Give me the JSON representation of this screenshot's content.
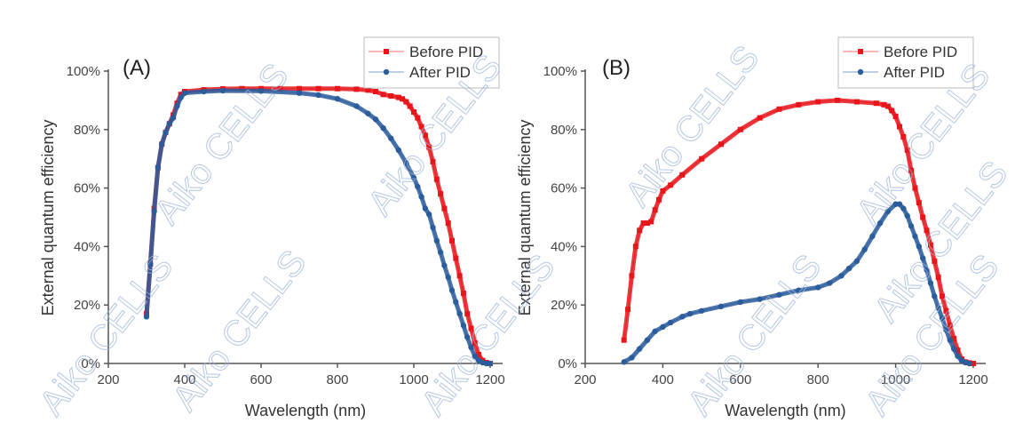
{
  "watermark": "Aiko CELLS",
  "colors": {
    "before": "#e8151b",
    "after": "#2b5c9c",
    "axis": "#555555",
    "watermark": "#9db4d8"
  },
  "chart_data": [
    {
      "type": "scatter",
      "panel_label": "(A)",
      "xlabel": "Wavelength (nm)",
      "ylabel": "External quantum efficiency",
      "xlim": [
        200,
        1220
      ],
      "ylim": [
        0,
        100
      ],
      "xticks": [
        200,
        400,
        600,
        800,
        1000,
        1200
      ],
      "xtick_labels": [
        "200",
        "400",
        "600",
        "800",
        "1000",
        "1200"
      ],
      "yticks": [
        0,
        20,
        40,
        60,
        80,
        100
      ],
      "ytick_labels": [
        "0%",
        "20%",
        "40%",
        "60%",
        "80%",
        "100%"
      ],
      "legend_position": "top-right",
      "series": [
        {
          "name": "Before PID",
          "marker": "square",
          "x": [
            300,
            310,
            320,
            330,
            340,
            350,
            360,
            370,
            380,
            390,
            400,
            450,
            500,
            550,
            600,
            650,
            700,
            750,
            800,
            850,
            880,
            900,
            920,
            940,
            960,
            970,
            980,
            990,
            1000,
            1010,
            1020,
            1030,
            1040,
            1050,
            1060,
            1070,
            1080,
            1090,
            1100,
            1110,
            1120,
            1130,
            1140,
            1150,
            1160,
            1170,
            1180,
            1190,
            1200
          ],
          "y": [
            17,
            34,
            53,
            67,
            75,
            79,
            82,
            85,
            89,
            92,
            93,
            93.6,
            93.9,
            94,
            94,
            94,
            94,
            94,
            94,
            93.8,
            93.5,
            93,
            92,
            91.5,
            91,
            90.5,
            89.5,
            88,
            86,
            84,
            81,
            78,
            74,
            69,
            63,
            58,
            53,
            48,
            42,
            36,
            30,
            24,
            17,
            12,
            7,
            3,
            1,
            0.3,
            0
          ]
        },
        {
          "name": "After PID",
          "marker": "circle",
          "x": [
            300,
            310,
            320,
            330,
            340,
            350,
            360,
            370,
            380,
            390,
            400,
            450,
            500,
            600,
            700,
            750,
            800,
            850,
            880,
            900,
            920,
            940,
            960,
            980,
            1000,
            1010,
            1020,
            1030,
            1040,
            1050,
            1060,
            1070,
            1080,
            1090,
            1100,
            1110,
            1120,
            1130,
            1140,
            1150,
            1160,
            1170,
            1180,
            1190,
            1200
          ],
          "y": [
            16,
            34,
            52,
            67,
            75,
            79,
            82,
            84,
            88,
            91,
            92.5,
            93,
            93.3,
            93.2,
            92.5,
            91.8,
            90.5,
            88,
            85.5,
            83.5,
            80.5,
            77,
            73,
            68.5,
            63.5,
            60.5,
            57,
            53,
            51,
            46.5,
            42,
            38,
            33.5,
            29.5,
            25,
            21,
            17,
            13,
            9,
            5.5,
            2.5,
            1,
            0.3,
            0,
            0
          ]
        }
      ]
    },
    {
      "type": "scatter",
      "panel_label": "(B)",
      "xlabel": "Wavelength (nm)",
      "ylabel": "External quantum efficiency",
      "xlim": [
        200,
        1220
      ],
      "ylim": [
        0,
        100
      ],
      "xticks": [
        200,
        400,
        600,
        800,
        1000,
        1200
      ],
      "xtick_labels": [
        "200",
        "400",
        "600",
        "800",
        "1000",
        "1200"
      ],
      "yticks": [
        0,
        20,
        40,
        60,
        80,
        100
      ],
      "ytick_labels": [
        "0%",
        "20%",
        "40%",
        "60%",
        "80%",
        "100%"
      ],
      "legend_position": "top-right",
      "series": [
        {
          "name": "Before PID",
          "marker": "square",
          "x": [
            300,
            310,
            320,
            330,
            340,
            350,
            360,
            370,
            380,
            390,
            400,
            420,
            450,
            500,
            550,
            600,
            650,
            700,
            750,
            800,
            850,
            900,
            950,
            970,
            980,
            990,
            1000,
            1010,
            1020,
            1030,
            1040,
            1050,
            1060,
            1070,
            1080,
            1090,
            1100,
            1110,
            1120,
            1130,
            1140,
            1150,
            1160,
            1170,
            1180,
            1190,
            1200
          ],
          "y": [
            8,
            18.5,
            30,
            40,
            45.5,
            48,
            48,
            48.5,
            52.5,
            56,
            59,
            61,
            64.5,
            70,
            75,
            80,
            84,
            87,
            88.5,
            89.5,
            90,
            89.5,
            89,
            88.5,
            88,
            86.5,
            84.5,
            81,
            77.5,
            73,
            66,
            60,
            55,
            50,
            45.5,
            40.5,
            35,
            29.5,
            23,
            18,
            13,
            8.5,
            4.5,
            1.5,
            0.5,
            0.2,
            0
          ]
        },
        {
          "name": "After PID",
          "marker": "circle",
          "x": [
            300,
            320,
            340,
            360,
            380,
            400,
            420,
            450,
            470,
            500,
            550,
            600,
            650,
            700,
            750,
            800,
            830,
            860,
            880,
            900,
            920,
            940,
            960,
            980,
            1000,
            1010,
            1020,
            1030,
            1040,
            1050,
            1060,
            1070,
            1080,
            1090,
            1100,
            1110,
            1120,
            1130,
            1140,
            1150,
            1160,
            1170,
            1180,
            1190
          ],
          "y": [
            0.5,
            2,
            5,
            8,
            11,
            12.5,
            14,
            16,
            17,
            18,
            19.5,
            21,
            22,
            23.5,
            25,
            26,
            27.5,
            30,
            32.5,
            35,
            39,
            43.5,
            48,
            52,
            54.5,
            54.5,
            53,
            50.5,
            47,
            43.5,
            40,
            36,
            32,
            27.5,
            23,
            19,
            15.5,
            11.5,
            8,
            5,
            2.5,
            1,
            0.3,
            0
          ]
        }
      ]
    }
  ]
}
